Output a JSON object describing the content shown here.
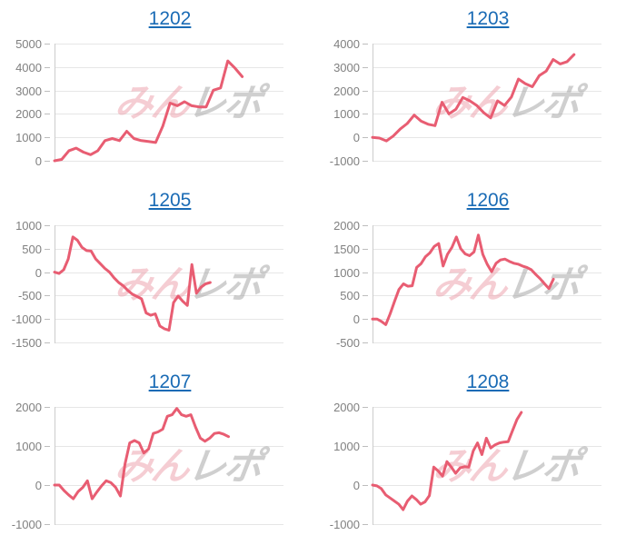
{
  "page": {
    "background": "#ffffff"
  },
  "colors": {
    "line": "#e85d72",
    "grid": "#e6e6e6",
    "axis_line": "#cccccc",
    "tick_mark": "#bdbdbd",
    "tick_label": "#808080",
    "title_link": "#1a6bb5",
    "watermark_pink": "#eda6b0",
    "watermark_gray": "#a8a8a8"
  },
  "watermark": {
    "part1": "みん",
    "part2": "レポ"
  },
  "chart_data": [
    {
      "type": "line",
      "title": "1202",
      "xlabel": "",
      "ylabel": "",
      "grid": true,
      "legend": "none",
      "ylim": [
        0,
        5000
      ],
      "yticks": [
        5000,
        4000,
        3000,
        2000,
        1000,
        0
      ],
      "x_span_fraction": 0.82,
      "values": [
        0,
        60,
        430,
        540,
        370,
        260,
        430,
        860,
        950,
        860,
        1260,
        950,
        860,
        820,
        780,
        1480,
        2460,
        2350,
        2520,
        2350,
        2300,
        2300,
        3010,
        3110,
        4260,
        3950,
        3590
      ]
    },
    {
      "type": "line",
      "title": "1203",
      "xlabel": "",
      "ylabel": "",
      "grid": true,
      "legend": "none",
      "ylim": [
        -1000,
        4000
      ],
      "yticks": [
        4000,
        3000,
        2000,
        1000,
        0,
        -1000
      ],
      "x_span_fraction": 0.88,
      "values": [
        0,
        -30,
        -150,
        60,
        360,
        590,
        950,
        690,
        560,
        500,
        1500,
        1000,
        1200,
        1700,
        1560,
        1360,
        1050,
        830,
        1560,
        1360,
        1720,
        2490,
        2290,
        2160,
        2630,
        2830,
        3320,
        3130,
        3230,
        3530
      ]
    },
    {
      "type": "line",
      "title": "1205",
      "xlabel": "",
      "ylabel": "",
      "grid": true,
      "legend": "none",
      "ylim": [
        -1500,
        1000
      ],
      "yticks": [
        1000,
        500,
        0,
        -500,
        -1000,
        -1500
      ],
      "x_span_fraction": 0.68,
      "values": [
        0,
        -30,
        50,
        280,
        750,
        680,
        530,
        460,
        450,
        280,
        180,
        80,
        0,
        -120,
        -220,
        -290,
        -390,
        -470,
        -520,
        -570,
        -870,
        -920,
        -890,
        -1150,
        -1210,
        -1240,
        -650,
        -510,
        -620,
        -710,
        160,
        -450,
        -320,
        -250,
        -220
      ]
    },
    {
      "type": "line",
      "title": "1206",
      "xlabel": "",
      "ylabel": "",
      "grid": true,
      "legend": "none",
      "ylim": [
        -500,
        2000
      ],
      "yticks": [
        2000,
        1500,
        1000,
        500,
        0,
        -500
      ],
      "x_span_fraction": 0.79,
      "values": [
        0,
        0,
        -50,
        -120,
        110,
        380,
        630,
        750,
        700,
        710,
        1100,
        1180,
        1330,
        1410,
        1550,
        1610,
        1130,
        1380,
        1530,
        1750,
        1500,
        1390,
        1350,
        1430,
        1790,
        1380,
        1170,
        1010,
        1190,
        1260,
        1280,
        1230,
        1190,
        1170,
        1130,
        1100,
        1050,
        950,
        860,
        750,
        650,
        850
      ]
    },
    {
      "type": "line",
      "title": "1207",
      "xlabel": "",
      "ylabel": "",
      "grid": true,
      "legend": "none",
      "ylim": [
        -1000,
        2000
      ],
      "yticks": [
        2000,
        1000,
        0,
        -1000
      ],
      "x_span_fraction": 0.76,
      "values": [
        0,
        0,
        -140,
        -250,
        -350,
        -170,
        -60,
        110,
        -350,
        -180,
        -20,
        110,
        60,
        -60,
        -280,
        540,
        1080,
        1140,
        1080,
        820,
        920,
        1320,
        1360,
        1430,
        1760,
        1800,
        1960,
        1800,
        1760,
        1800,
        1480,
        1200,
        1120,
        1200,
        1320,
        1340,
        1300,
        1240
      ]
    },
    {
      "type": "line",
      "title": "1208",
      "xlabel": "",
      "ylabel": "",
      "grid": true,
      "legend": "none",
      "ylim": [
        -1000,
        2000
      ],
      "yticks": [
        2000,
        1000,
        0,
        -1000
      ],
      "x_span_fraction": 0.65,
      "values": [
        0,
        -20,
        -90,
        -250,
        -330,
        -410,
        -490,
        -630,
        -410,
        -280,
        -370,
        -490,
        -430,
        -270,
        460,
        360,
        230,
        600,
        460,
        300,
        440,
        470,
        460,
        870,
        1080,
        780,
        1200,
        950,
        1030,
        1080,
        1100,
        1110,
        1400,
        1680,
        1860
      ]
    }
  ]
}
